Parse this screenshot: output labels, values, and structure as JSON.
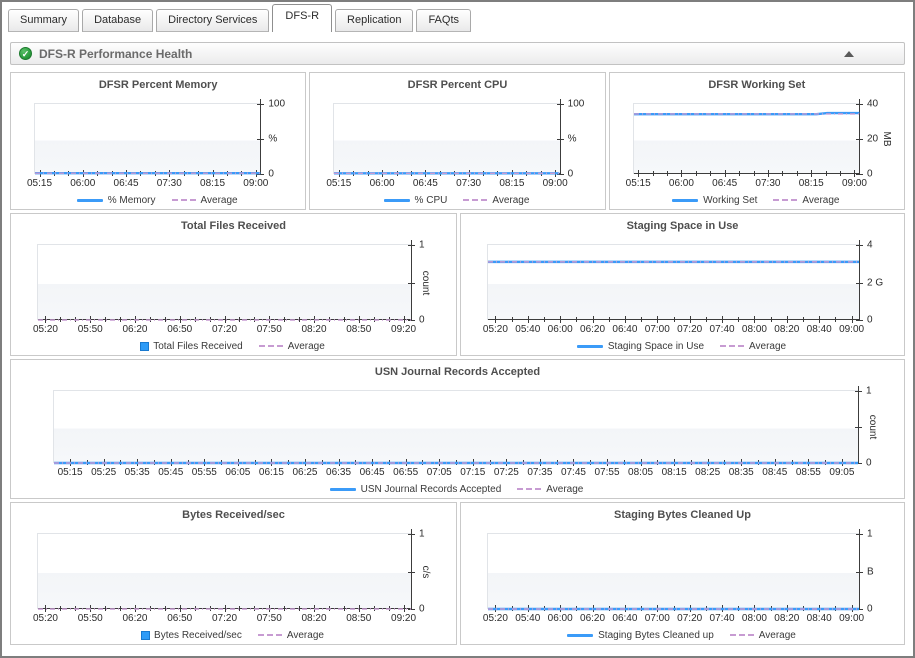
{
  "tabs": [
    {
      "label": "Summary",
      "active": false
    },
    {
      "label": "Database",
      "active": false
    },
    {
      "label": "Directory Services",
      "active": false
    },
    {
      "label": "DFS-R",
      "active": true
    },
    {
      "label": "Replication",
      "active": false
    },
    {
      "label": "FAQts",
      "active": false
    }
  ],
  "section": {
    "title": "DFS-R Performance Health",
    "status": "normal"
  },
  "colors": {
    "series_blue": "#3b9bf8",
    "average_dash": "#c79bd2",
    "axis": "#3c3c3c"
  },
  "chart_data": [
    {
      "type": "line",
      "title": "DFSR Percent Memory",
      "ylim": [
        0,
        100
      ],
      "ytop_label": "100",
      "ymid_label": "",
      "ybottom_label": "0",
      "unit": "%",
      "unit_rotated": false,
      "x_major_labels": [
        "05:15",
        "06:00",
        "06:45",
        "07:30",
        "08:15",
        "09:00"
      ],
      "x_minors_between": 2,
      "series": [
        {
          "name": "% Memory",
          "values": [
            1.2,
            1.2,
            1.2,
            1.2,
            1.2,
            1.2,
            1.2,
            1.2
          ]
        }
      ],
      "average": 1.2,
      "average_label": "Average",
      "legend_marker": "line"
    },
    {
      "type": "line",
      "title": "DFSR Percent CPU",
      "ylim": [
        0,
        100
      ],
      "ytop_label": "100",
      "ymid_label": "",
      "ybottom_label": "0",
      "unit": "%",
      "unit_rotated": false,
      "x_major_labels": [
        "05:15",
        "06:00",
        "06:45",
        "07:30",
        "08:15",
        "09:00"
      ],
      "x_minors_between": 2,
      "series": [
        {
          "name": "% CPU",
          "values": [
            1.0,
            1.0,
            1.0,
            1.0,
            1.0,
            1.0,
            1.0,
            1.0
          ]
        }
      ],
      "average": 1.0,
      "average_label": "Average",
      "legend_marker": "line"
    },
    {
      "type": "line",
      "title": "DFSR Working Set",
      "ylim": [
        0,
        40
      ],
      "ytop_label": "40",
      "ymid_label": "20",
      "ybottom_label": "0",
      "unit": "MB",
      "unit_rotated": true,
      "x_major_labels": [
        "05:15",
        "06:00",
        "06:45",
        "07:30",
        "08:15",
        "09:00"
      ],
      "x_minors_between": 2,
      "series": [
        {
          "name": "Working Set",
          "values": [
            34.2,
            34.2,
            34.2,
            34.2,
            34.2,
            34.2,
            34.2,
            34.2,
            34.2,
            34.2,
            34.2,
            34.2,
            34.2,
            34.2,
            34.2,
            34.2,
            34.2,
            34.2,
            34.8,
            34.8,
            34.8,
            34.8
          ]
        }
      ],
      "average": 34.3,
      "average_label": "Average",
      "legend_marker": "line"
    },
    {
      "type": "area",
      "title": "Total Files Received",
      "ylim": [
        0,
        1
      ],
      "ytop_label": "1",
      "ymid_label": "",
      "ybottom_label": "0",
      "unit": "count",
      "unit_rotated": true,
      "x_major_labels": [
        "05:20",
        "05:50",
        "06:20",
        "06:50",
        "07:20",
        "07:50",
        "08:20",
        "08:50",
        "09:20"
      ],
      "x_minors_between": 2,
      "series": [
        {
          "name": "Total Files Received",
          "values": [
            0,
            0,
            0,
            0,
            0,
            0,
            0,
            0,
            0
          ]
        }
      ],
      "average": 0,
      "average_label": "Average",
      "legend_marker": "square"
    },
    {
      "type": "line",
      "title": "Staging Space in Use",
      "ylim": [
        0,
        4
      ],
      "ytop_label": "4",
      "ymid_label": "2",
      "ybottom_label": "0",
      "unit": "G",
      "unit_rotated": false,
      "x_major_labels": [
        "05:20",
        "05:40",
        "06:00",
        "06:20",
        "06:40",
        "07:00",
        "07:20",
        "07:40",
        "08:00",
        "08:20",
        "08:40",
        "09:00"
      ],
      "x_minors_between": 1,
      "series": [
        {
          "name": "Staging Space in Use",
          "values": [
            3.1,
            3.1,
            3.1,
            3.1,
            3.1,
            3.1,
            3.1,
            3.1,
            3.1,
            3.1,
            3.1,
            3.1
          ]
        }
      ],
      "average": 3.1,
      "average_label": "Average",
      "legend_marker": "line"
    },
    {
      "type": "line",
      "title": "USN Journal Records Accepted",
      "ylim": [
        0,
        1
      ],
      "ytop_label": "1",
      "ymid_label": "",
      "ybottom_label": "0",
      "unit": "count",
      "unit_rotated": true,
      "x_major_labels": [
        "05:15",
        "05:25",
        "05:35",
        "05:45",
        "05:55",
        "06:05",
        "06:15",
        "06:25",
        "06:35",
        "06:45",
        "06:55",
        "07:05",
        "07:15",
        "07:25",
        "07:35",
        "07:45",
        "07:55",
        "08:05",
        "08:15",
        "08:25",
        "08:35",
        "08:45",
        "08:55",
        "09:05"
      ],
      "x_minors_between": 1,
      "series": [
        {
          "name": "USN Journal Records Accepted",
          "values": [
            0,
            0,
            0,
            0,
            0,
            0,
            0,
            0,
            0,
            0,
            0,
            0
          ]
        }
      ],
      "average": 0,
      "average_label": "Average",
      "legend_marker": "line"
    },
    {
      "type": "area",
      "title": "Bytes Received/sec",
      "ylim": [
        0,
        1
      ],
      "ytop_label": "1",
      "ymid_label": "",
      "ybottom_label": "0",
      "unit": "c/s",
      "unit_rotated": true,
      "x_major_labels": [
        "05:20",
        "05:50",
        "06:20",
        "06:50",
        "07:20",
        "07:50",
        "08:20",
        "08:50",
        "09:20"
      ],
      "x_minors_between": 2,
      "series": [
        {
          "name": "Bytes Received/sec",
          "values": [
            0,
            0,
            0,
            0,
            0,
            0,
            0,
            0,
            0
          ]
        }
      ],
      "average": 0,
      "average_label": "Average",
      "legend_marker": "square"
    },
    {
      "type": "line",
      "title": "Staging Bytes Cleaned Up",
      "ylim": [
        0,
        1
      ],
      "ytop_label": "1",
      "ymid_label": "",
      "ybottom_label": "0",
      "unit": "B",
      "unit_rotated": false,
      "x_major_labels": [
        "05:20",
        "05:40",
        "06:00",
        "06:20",
        "06:40",
        "07:00",
        "07:20",
        "07:40",
        "08:00",
        "08:20",
        "08:40",
        "09:00"
      ],
      "x_minors_between": 1,
      "series": [
        {
          "name": "Staging Bytes Cleaned up",
          "values": [
            0,
            0,
            0,
            0,
            0,
            0,
            0,
            0,
            0,
            0,
            0,
            0
          ]
        }
      ],
      "average": 0,
      "average_label": "Average",
      "legend_marker": "line"
    }
  ]
}
